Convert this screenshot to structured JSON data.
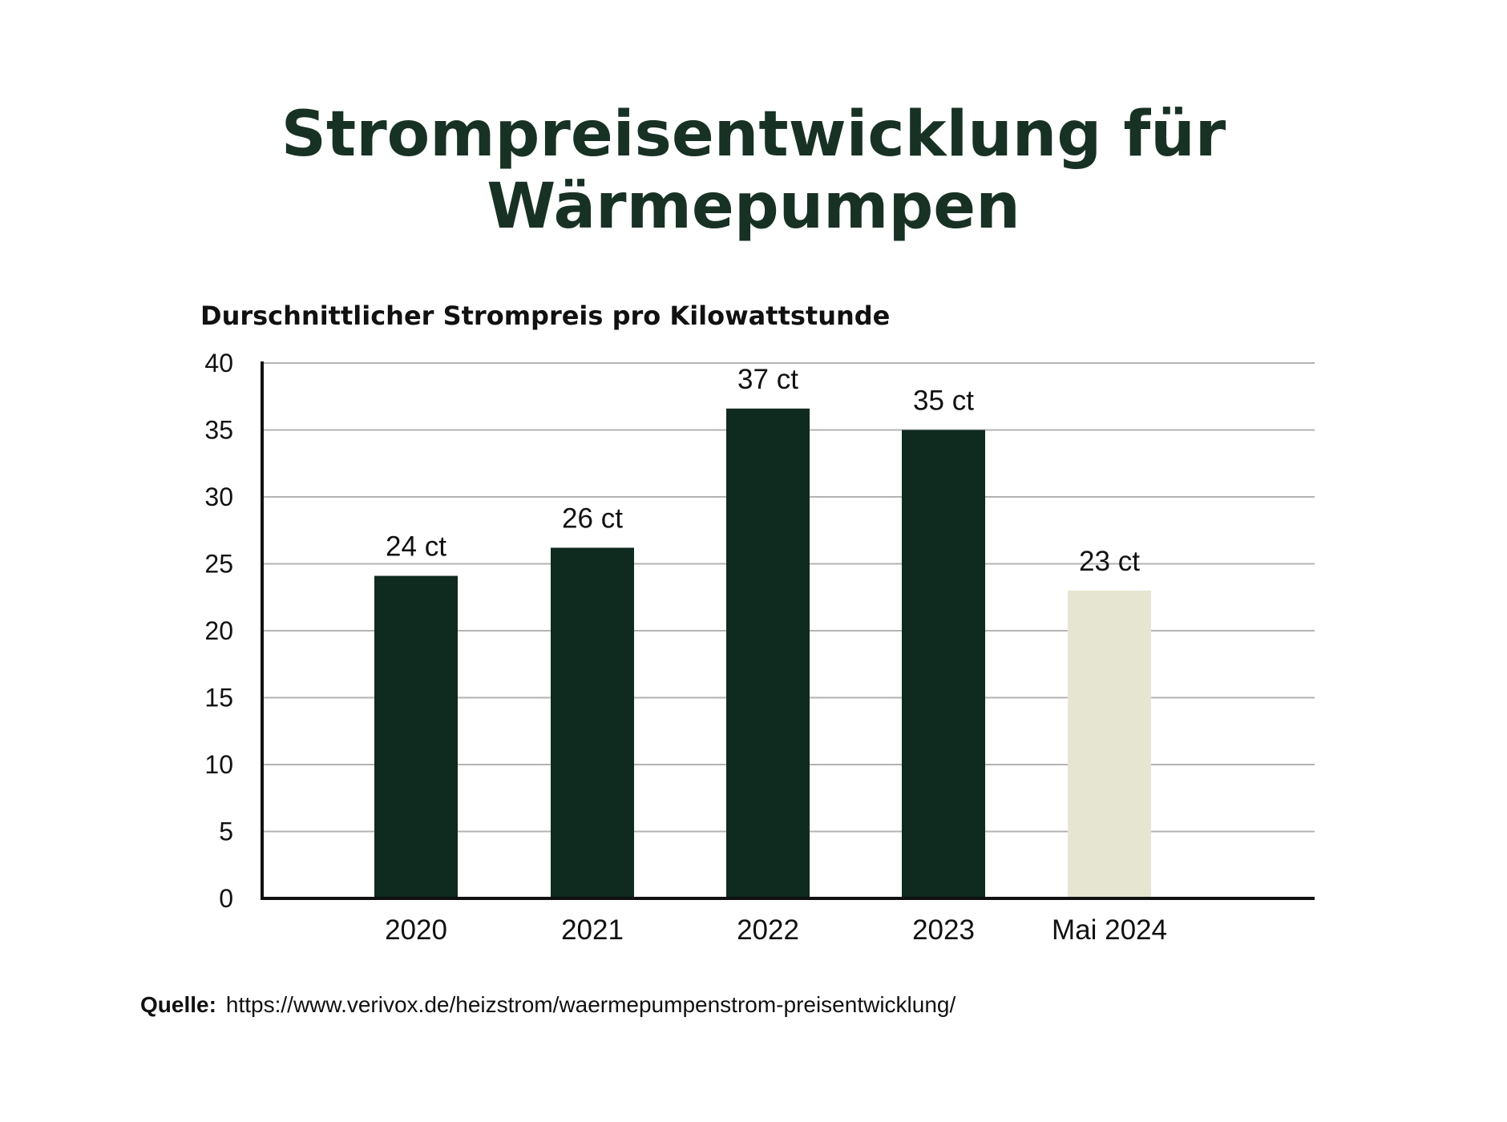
{
  "chart_data": {
    "type": "bar",
    "title_line1": "Strompreisentwicklung für",
    "title_line2": "Wärmepumpen",
    "subtitle": "Durschnittlicher Strompreis pro Kilowattstunde",
    "categories": [
      "2020",
      "2021",
      "2022",
      "2023",
      "Mai 2024"
    ],
    "values": [
      24,
      26,
      37,
      35,
      23
    ],
    "bar_values_plotted": [
      24.1,
      26.2,
      36.6,
      35.0,
      23.0
    ],
    "data_labels": [
      "24 ct",
      "26 ct",
      "37 ct",
      "35 ct",
      "23 ct"
    ],
    "bar_colors": [
      "#0f2a1f",
      "#0f2a1f",
      "#0f2a1f",
      "#0f2a1f",
      "#e6e5d1"
    ],
    "yticks": [
      "0",
      "5",
      "10",
      "15",
      "20",
      "25",
      "30",
      "35",
      "40"
    ],
    "ylim": [
      0,
      40
    ],
    "grid": true,
    "xlabel": "",
    "ylabel": ""
  },
  "source": {
    "label": "Quelle:",
    "url": "https://www.verivox.de/heizstrom/waermepumpenstrom-preisentwicklung/"
  },
  "colors": {
    "title": "#183125",
    "bar_dark": "#0f2a1f",
    "bar_light": "#e6e5d1",
    "grid": "#b3b3b3",
    "axis": "#111111"
  }
}
